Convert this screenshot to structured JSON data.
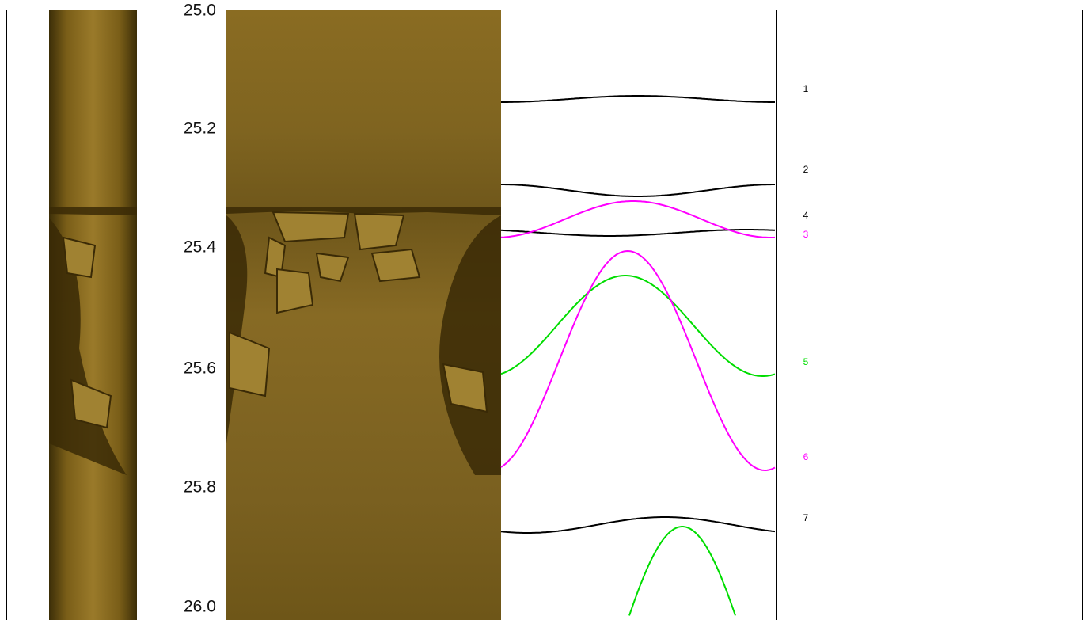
{
  "depth_track": {
    "labels": [
      "25.0",
      "25.2",
      "25.4",
      "25.6",
      "25.8",
      "26.0"
    ]
  },
  "picks": [
    {
      "label": "1",
      "color": "#000000"
    },
    {
      "label": "2",
      "color": "#000000"
    },
    {
      "label": "4",
      "color": "#000000"
    },
    {
      "label": "3",
      "color": "#ff00ff"
    },
    {
      "label": "5",
      "color": "#00dd00"
    },
    {
      "label": "6",
      "color": "#ff00ff"
    },
    {
      "label": "7",
      "color": "#000000"
    }
  ]
}
